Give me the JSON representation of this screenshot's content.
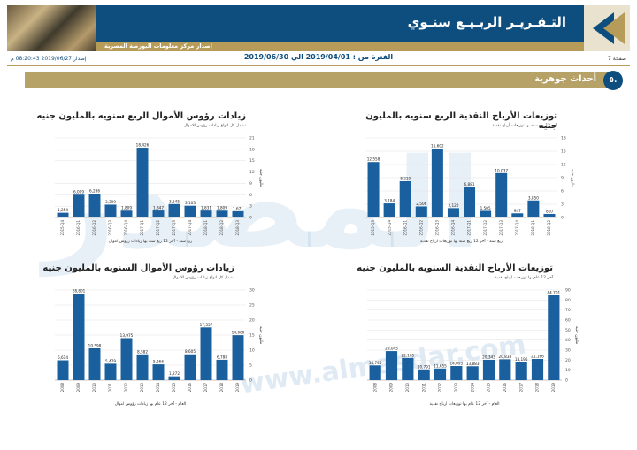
{
  "header": {
    "title": "التـقـريـر الربـيـع سنـوي",
    "subtitle": "إصدار مركز معلومات البورصة المصرية"
  },
  "infobar": {
    "page": "صفحة 7",
    "period": "الفترة من : 2019/04/01 الي 2019/06/30",
    "issued": "إصدار 2019/06/27 08:20:43 م"
  },
  "section": {
    "number": "٥.",
    "title": "أحداث جوهرية"
  },
  "watermark": {
    "text": "المصدر",
    "url": "www.almasdar.com"
  },
  "colors": {
    "bar": "#1a5f9e",
    "banner": "#0e4e7f",
    "gold": "#b79b58"
  },
  "chart_data": [
    {
      "id": "cash-dividends-quarterly",
      "type": "bar",
      "title": "توزيعات الأرباح النقدية الربع سنويه بالمليون جنيه",
      "subtitle": "آخر 12 ربع سنه بها توزيعات أرباح نقدية",
      "xlabel": "ربع سنه - آخر 12 ربع سنه بها توزيعات ارباح نقدية",
      "ylabel": "مليون جنيه",
      "categories": [
        "2015-Q3",
        "2015-Q4",
        "2016-Q1",
        "2016-Q2",
        "2016-Q3",
        "2016-Q4",
        "2017-Q1",
        "2017-Q2",
        "2017-Q3",
        "2017-Q4",
        "2018-Q1",
        "2018-Q2"
      ],
      "values": [
        12558,
        3184,
        8210,
        2506,
        15602,
        2120,
        6881,
        1505,
        10037,
        947,
        3850,
        810
      ],
      "ylim": [
        0,
        18
      ],
      "yscale": 1000,
      "yticks": [
        0,
        3,
        6,
        9,
        12,
        15,
        18
      ]
    },
    {
      "id": "capital-increases-quarterly",
      "type": "bar",
      "title": "زيادات رؤوس الأموال الربع سنويه بالمليون جنيه",
      "subtitle": "تشمل كل انواع زيادات رؤوس الاموال",
      "xlabel": "ربع سنه - آخر 12 ربع سنه بها زيادات رؤوس اموال",
      "ylabel": "مليون جنيه",
      "categories": [
        "2015-Q4",
        "2016-Q1",
        "2016-Q2",
        "2016-Q3",
        "2016-Q4",
        "2017-Q1",
        "2017-Q2",
        "2017-Q3",
        "2017-Q4",
        "2018-Q1",
        "2018-Q2",
        "2018-Q3"
      ],
      "values": [
        1254,
        6009,
        6286,
        3399,
        1809,
        18426,
        1847,
        3545,
        3103,
        1831,
        1809,
        1671
      ],
      "ylim": [
        0,
        21
      ],
      "yscale": 1000,
      "yticks": [
        0,
        3,
        6,
        9,
        12,
        15,
        18,
        21
      ]
    },
    {
      "id": "cash-dividends-annual",
      "type": "bar",
      "title": "توزيعات الأرباح النقدية السنويه بالمليون جنيه",
      "subtitle": "آخر 12 عام بها توزيعات ارباح نقدية",
      "xlabel": "العام - آخر 12 عام بها توزيعات ارباح نقدية",
      "ylabel": "مليون جنيه",
      "categories": [
        "2008",
        "2009",
        "2010",
        "2011",
        "2012",
        "2013",
        "2014",
        "2015",
        "2016",
        "2017",
        "2018",
        "2019"
      ],
      "values": [
        14745,
        29045,
        22165,
        10791,
        11655,
        14095,
        13883,
        20343,
        20833,
        18195,
        21166,
        84701
      ],
      "ylim": [
        0,
        90
      ],
      "yscale": 1000,
      "yticks": [
        0,
        10,
        20,
        30,
        40,
        50,
        60,
        70,
        80,
        90
      ]
    },
    {
      "id": "capital-increases-annual",
      "type": "bar",
      "title": "زيادات رؤوس الأموال السنويه بالمليون جنيه",
      "subtitle": "تشمل كل انواع زيادات رؤوس الاموال",
      "xlabel": "العام - آخر 12 عام بها زيادات رؤوس اموال",
      "ylabel": "مليون جنيه",
      "categories": [
        "2008",
        "2009",
        "2010",
        "2011",
        "2012",
        "2013",
        "2014",
        "2015",
        "2016",
        "2017",
        "2018",
        "2019"
      ],
      "values": [
        6614,
        28801,
        10598,
        5479,
        13975,
        8582,
        5266,
        1272,
        8605,
        17557,
        6788,
        14960
      ],
      "ylim": [
        0,
        30
      ],
      "yscale": 1000,
      "yticks": [
        0,
        5,
        10,
        15,
        20,
        25,
        30
      ]
    }
  ]
}
